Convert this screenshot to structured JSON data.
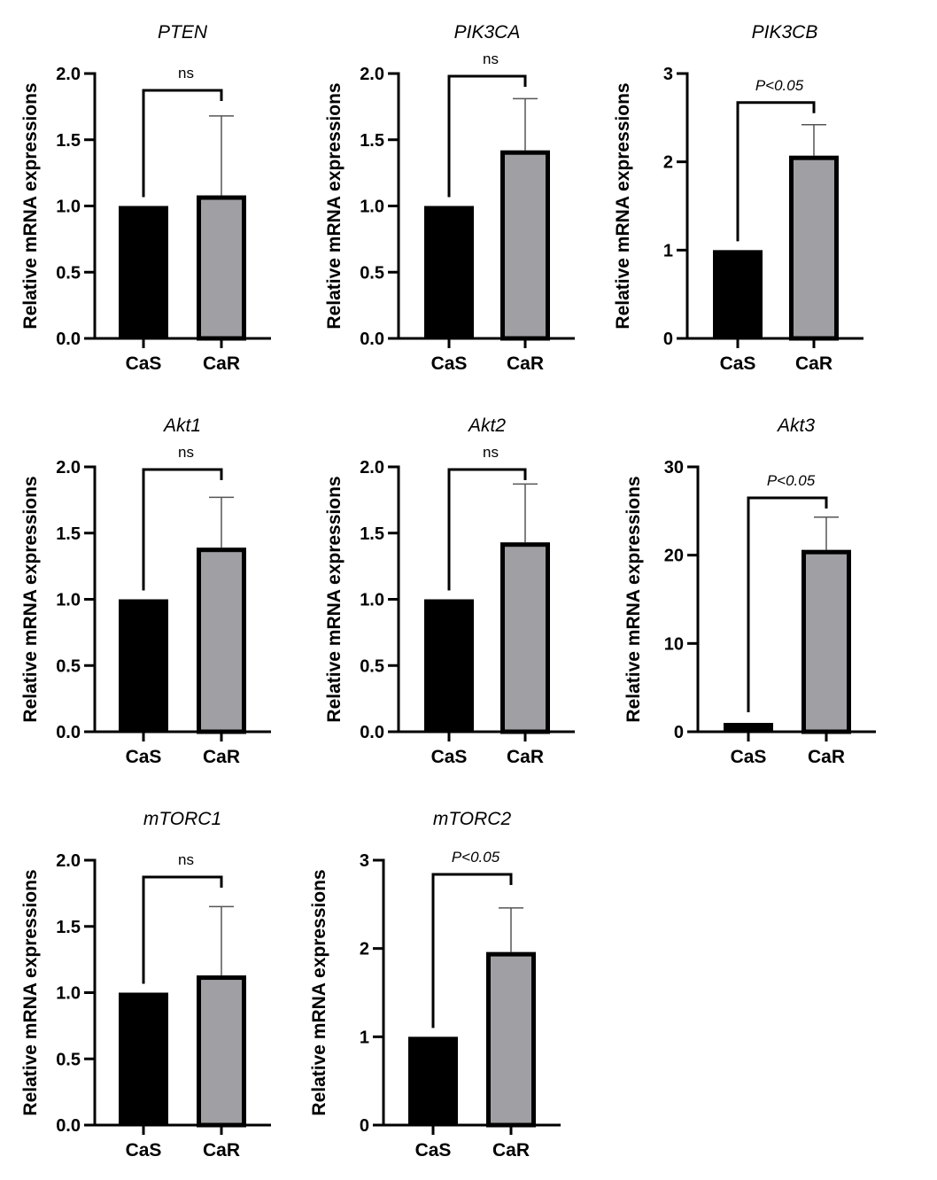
{
  "chart_data": [
    {
      "type": "bar",
      "title": "PTEN",
      "categories": [
        "CaS",
        "CaR"
      ],
      "values": [
        1.0,
        1.08
      ],
      "error_upper": [
        null,
        1.68
      ],
      "ylabel": "Relative mRNA expressions",
      "xlabel": "",
      "ylim": [
        0,
        2.0
      ],
      "yticks": [
        "0.0",
        "0.5",
        "1.0",
        "1.5",
        "2.0"
      ],
      "ytick_values": [
        0,
        0.5,
        1.0,
        1.5,
        2.0
      ],
      "significance": {
        "label": "ns",
        "italic": false
      },
      "colors": [
        "#000000",
        "#a0a0a4"
      ],
      "grid": false
    },
    {
      "type": "bar",
      "title": "PIK3CA",
      "categories": [
        "CaS",
        "CaR"
      ],
      "values": [
        1.0,
        1.42
      ],
      "error_upper": [
        null,
        1.81
      ],
      "ylabel": "Relative mRNA expressions",
      "xlabel": "",
      "ylim": [
        0,
        2.0
      ],
      "yticks": [
        "0.0",
        "0.5",
        "1.0",
        "1.5",
        "2.0"
      ],
      "ytick_values": [
        0,
        0.5,
        1.0,
        1.5,
        2.0
      ],
      "significance": {
        "label": "ns",
        "italic": false
      },
      "colors": [
        "#000000",
        "#a0a0a4"
      ],
      "grid": false
    },
    {
      "type": "bar",
      "title": "PIK3CB",
      "categories": [
        "CaS",
        "CaR"
      ],
      "values": [
        1.0,
        2.07
      ],
      "error_upper": [
        null,
        2.42
      ],
      "ylabel": "Relative mRNA expressions",
      "xlabel": "",
      "ylim": [
        0,
        3
      ],
      "yticks": [
        "0",
        "1",
        "2",
        "3"
      ],
      "ytick_values": [
        0,
        1,
        2,
        3
      ],
      "significance": {
        "label": "P<0.05",
        "italic": true
      },
      "colors": [
        "#000000",
        "#a0a0a4"
      ],
      "grid": false
    },
    {
      "type": "bar",
      "title": "Akt1",
      "categories": [
        "CaS",
        "CaR"
      ],
      "values": [
        1.0,
        1.39
      ],
      "error_upper": [
        null,
        1.77
      ],
      "ylabel": "Relative mRNA expressions",
      "xlabel": "",
      "ylim": [
        0,
        2.0
      ],
      "yticks": [
        "0.0",
        "0.5",
        "1.0",
        "1.5",
        "2.0"
      ],
      "ytick_values": [
        0,
        0.5,
        1.0,
        1.5,
        2.0
      ],
      "significance": {
        "label": "ns",
        "italic": false
      },
      "colors": [
        "#000000",
        "#a0a0a4"
      ],
      "grid": false
    },
    {
      "type": "bar",
      "title": "Akt2",
      "categories": [
        "CaS",
        "CaR"
      ],
      "values": [
        1.0,
        1.43
      ],
      "error_upper": [
        null,
        1.87
      ],
      "ylabel": "Relative mRNA expressions",
      "xlabel": "",
      "ylim": [
        0,
        2.0
      ],
      "yticks": [
        "0.0",
        "0.5",
        "1.0",
        "1.5",
        "2.0"
      ],
      "ytick_values": [
        0,
        0.5,
        1.0,
        1.5,
        2.0
      ],
      "significance": {
        "label": "ns",
        "italic": false
      },
      "colors": [
        "#000000",
        "#a0a0a4"
      ],
      "grid": false
    },
    {
      "type": "bar",
      "title": "Akt3",
      "categories": [
        "CaS",
        "CaR"
      ],
      "values": [
        1.0,
        20.6
      ],
      "error_upper": [
        null,
        24.3
      ],
      "ylabel": "Relative mRNA expressions",
      "xlabel": "",
      "ylim": [
        0,
        30
      ],
      "yticks": [
        "0",
        "10",
        "20",
        "30"
      ],
      "ytick_values": [
        0,
        10,
        20,
        30
      ],
      "significance": {
        "label": "P<0.05",
        "italic": true
      },
      "colors": [
        "#000000",
        "#a0a0a4"
      ],
      "grid": false
    },
    {
      "type": "bar",
      "title": "mTORC1",
      "categories": [
        "CaS",
        "CaR"
      ],
      "values": [
        1.0,
        1.13
      ],
      "error_upper": [
        null,
        1.65
      ],
      "ylabel": "Relative mRNA expressions",
      "xlabel": "",
      "ylim": [
        0,
        2.0
      ],
      "yticks": [
        "0.0",
        "0.5",
        "1.0",
        "1.5",
        "2.0"
      ],
      "ytick_values": [
        0,
        0.5,
        1.0,
        1.5,
        2.0
      ],
      "significance": {
        "label": "ns",
        "italic": false
      },
      "colors": [
        "#000000",
        "#a0a0a4"
      ],
      "grid": false
    },
    {
      "type": "bar",
      "title": "mTORC2",
      "categories": [
        "CaS",
        "CaR"
      ],
      "values": [
        1.0,
        1.96
      ],
      "error_upper": [
        null,
        2.46
      ],
      "ylabel": "Relative mRNA expressions",
      "xlabel": "",
      "ylim": [
        0,
        3
      ],
      "yticks": [
        "0",
        "1",
        "2",
        "3"
      ],
      "ytick_values": [
        0,
        1,
        2,
        3
      ],
      "significance": {
        "label": "P<0.05",
        "italic": true
      },
      "colors": [
        "#000000",
        "#a0a0a4"
      ],
      "grid": false
    }
  ]
}
